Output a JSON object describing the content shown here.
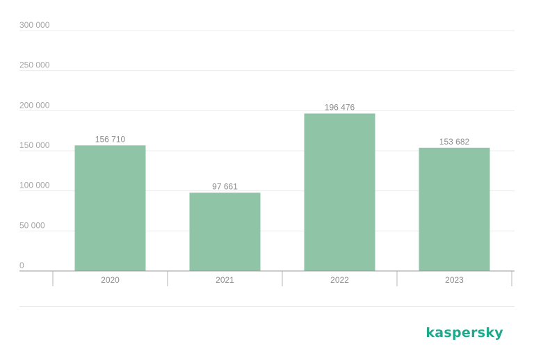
{
  "colors": {
    "bar": "#8fc4a6",
    "brand": "#1da98a"
  },
  "brand": {
    "logo_text": "kaspersky"
  },
  "chart_data": {
    "type": "bar",
    "categories": [
      "2020",
      "2021",
      "2022",
      "2023"
    ],
    "values": [
      156710,
      97661,
      196476,
      153682
    ],
    "value_labels": [
      "156 710",
      "97 661",
      "196 476",
      "153 682"
    ],
    "ylim": [
      0,
      300000
    ],
    "yticks": [
      0,
      50000,
      100000,
      150000,
      200000,
      250000,
      300000
    ],
    "ytick_labels": [
      "0",
      "50 000",
      "100 000",
      "150 000",
      "200 000",
      "250 000",
      "300 000"
    ],
    "title": "",
    "xlabel": "",
    "ylabel": "",
    "grid": true,
    "legend": "none"
  }
}
